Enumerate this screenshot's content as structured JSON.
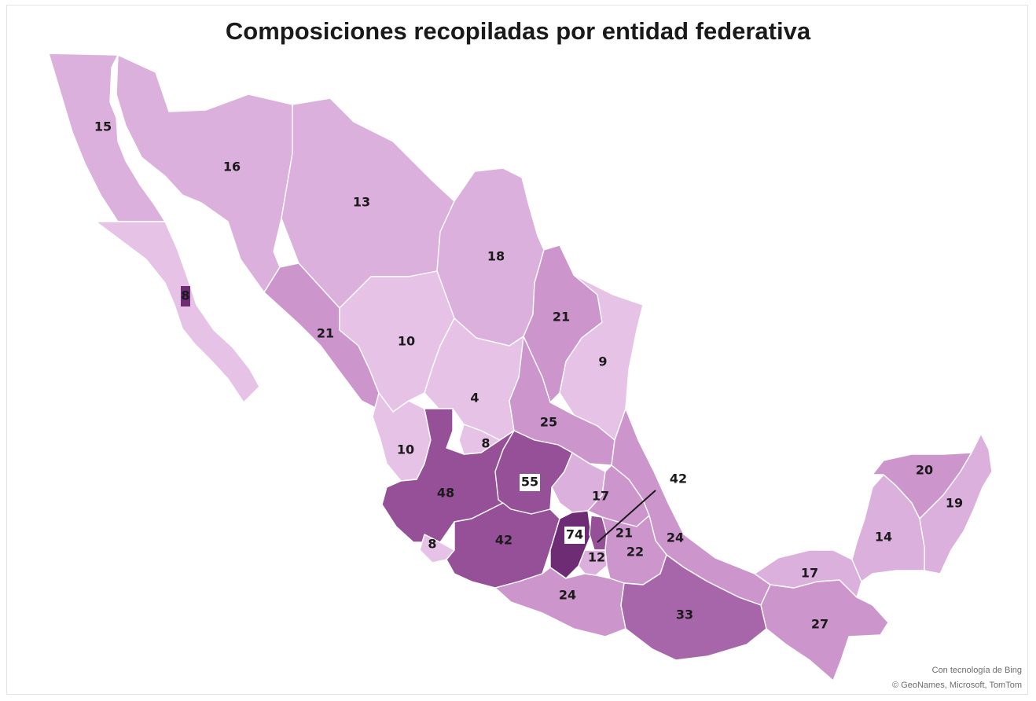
{
  "title": "Composiciones recopiladas por entidad federativa",
  "credit_line1": "Con tecnología de Bing",
  "credit_line2": "© GeoNames, Microsoft, TomTom",
  "colors": {
    "c1": "#e6c3e6",
    "c2": "#dcb0dc",
    "c3": "#cc96cc",
    "c4": "#a766aa",
    "c5": "#955098",
    "c6": "#6e2c75",
    "land_outline": "#ffffff"
  },
  "states": [
    {
      "name": "Baja California",
      "value": 15
    },
    {
      "name": "Sonora",
      "value": 16
    },
    {
      "name": "Chihuahua",
      "value": 13
    },
    {
      "name": "Coahuila",
      "value": 18
    },
    {
      "name": "Baja California Sur",
      "value": 8
    },
    {
      "name": "Sinaloa",
      "value": 21
    },
    {
      "name": "Durango",
      "value": 10
    },
    {
      "name": "Nuevo León",
      "value": 21
    },
    {
      "name": "Tamaulipas",
      "value": 9
    },
    {
      "name": "Zacatecas",
      "value": 4
    },
    {
      "name": "San Luis Potosí",
      "value": 25
    },
    {
      "name": "Nayarit",
      "value": 10
    },
    {
      "name": "Aguascalientes",
      "value": 8
    },
    {
      "name": "Jalisco",
      "value": 48
    },
    {
      "name": "Guanajuato",
      "value": 55
    },
    {
      "name": "Querétaro",
      "value": 17
    },
    {
      "name": "Hidalgo",
      "value": 21
    },
    {
      "name": "Veracruz",
      "value": 24
    },
    {
      "name": "Colima",
      "value": 8
    },
    {
      "name": "Michoacán",
      "value": 42
    },
    {
      "name": "Estado de México",
      "value": 74
    },
    {
      "name": "Ciudad de México",
      "value": 42
    },
    {
      "name": "Morelos",
      "value": 12
    },
    {
      "name": "Puebla",
      "value": 22
    },
    {
      "name": "Guerrero",
      "value": 24
    },
    {
      "name": "Oaxaca",
      "value": 33
    },
    {
      "name": "Chiapas",
      "value": 27
    },
    {
      "name": "Tabasco",
      "value": 17
    },
    {
      "name": "Campeche",
      "value": 14
    },
    {
      "name": "Yucatán",
      "value": 20
    },
    {
      "name": "Quintana Roo",
      "value": 19
    }
  ]
}
